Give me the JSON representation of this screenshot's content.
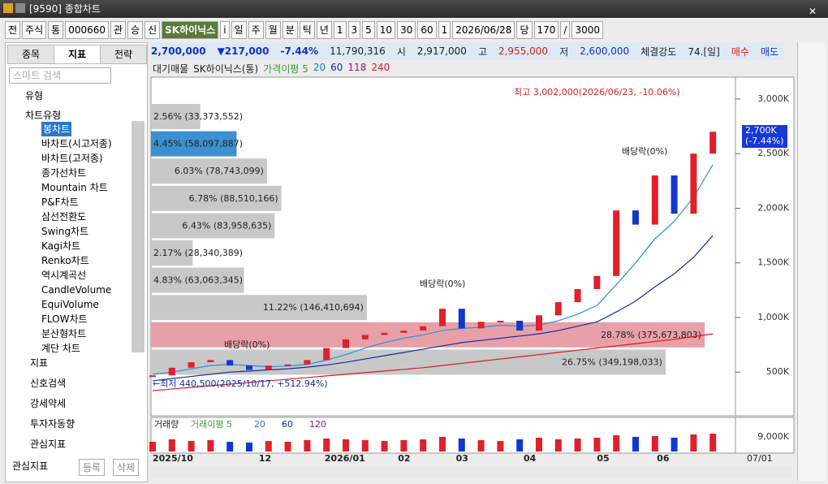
{
  "window": {
    "title": "[9590] 종합차트"
  },
  "toolbar": {
    "items": [
      "전",
      "주식",
      "통",
      "000660",
      "관",
      "승",
      "신",
      "SK하이닉스",
      "i",
      "일",
      "주",
      "월",
      "분",
      "틱",
      "년",
      "1",
      "3",
      "5",
      "10",
      "30",
      "60",
      "1",
      "2026/06/28",
      "당",
      "170",
      "/",
      "3000"
    ]
  },
  "left_panel": {
    "tabs": [
      "종목",
      "지표",
      "전략"
    ],
    "search": "스마트 검색",
    "group": "유형",
    "subgroup": "차트유형",
    "items": [
      "봉차트",
      "바차트(시고저종)",
      "바차트(고저종)",
      "종가선차트",
      "Mountain 차트",
      "P&F차트",
      "삼선전환도",
      "Swing차트",
      "Kagi차트",
      "Renko차트",
      "역시계곡선",
      "CandleVolume",
      "EquiVolume",
      "FLOW차트",
      "분산형차트",
      "계단 차트"
    ],
    "sections": [
      "지표",
      "신호검색",
      "강세약세",
      "투자자동향",
      "관심지표"
    ],
    "footer": [
      "관심지표",
      "등록",
      "삭제"
    ]
  },
  "info": {
    "price": "2,700,000",
    "change": "▼217,000",
    "rate": "-7.44%",
    "volume": "11,790,316",
    "open_label": "시",
    "open": "2,917,000",
    "high_label": "고",
    "high": "2,955,000",
    "low_label": "저",
    "low": "2,600,000",
    "strength_label": "체결강도",
    "strength": "74.[일]",
    "buy": "매수",
    "sell": "매도"
  },
  "legend": [
    "대기매물",
    "SK하이닉스(통)",
    "가격이평 5",
    "20",
    "60",
    "118",
    "240"
  ],
  "chart_data": {
    "type": "candlestick",
    "closes": [
      470,
      540,
      590,
      610,
      560,
      520,
      560,
      570,
      610,
      720,
      800,
      840,
      860,
      880,
      920,
      1080,
      900,
      960,
      970,
      880,
      1020,
      1140,
      1260,
      1380,
      1980,
      1850,
      2300,
      1950,
      2500,
      2700
    ],
    "ma20": [
      480,
      500,
      530,
      560,
      570,
      560,
      550,
      555,
      570,
      610,
      660,
      720,
      770,
      810,
      840,
      880,
      900,
      910,
      930,
      920,
      930,
      970,
      1030,
      1110,
      1300,
      1500,
      1720,
      1880,
      2100,
      2400
    ],
    "ma60": [
      420,
      440,
      460,
      480,
      500,
      510,
      520,
      530,
      545,
      565,
      590,
      620,
      650,
      680,
      710,
      740,
      770,
      790,
      810,
      830,
      850,
      880,
      920,
      960,
      1050,
      1150,
      1280,
      1400,
      1550,
      1750
    ],
    "ma240": [
      330,
      345,
      360,
      375,
      390,
      405,
      420,
      435,
      450,
      465,
      480,
      495,
      510,
      525,
      540,
      560,
      580,
      600,
      620,
      640,
      660,
      680,
      700,
      720,
      740,
      760,
      780,
      800,
      825,
      850
    ],
    "ylim": [
      100,
      3200
    ],
    "yticks": [
      {
        "value": 3000,
        "label": "3,000K"
      },
      {
        "value": 2500,
        "label": "2,500K"
      },
      {
        "value": 2000,
        "label": "2,000K"
      },
      {
        "value": 1500,
        "label": "1,500K"
      },
      {
        "value": 1000,
        "label": "1,000K"
      },
      {
        "value": 500,
        "label": "500K"
      }
    ],
    "xticks": [
      {
        "value": 0,
        "label": "2025/10"
      },
      {
        "value": 5.5,
        "label": "12"
      },
      {
        "value": 8.9,
        "label": "2026/01"
      },
      {
        "value": 12.7,
        "label": "02"
      },
      {
        "value": 15.7,
        "label": "03"
      },
      {
        "value": 19.2,
        "label": "04"
      },
      {
        "value": 23,
        "label": "05"
      },
      {
        "value": 26.1,
        "label": "06"
      }
    ],
    "x_end": "07/01",
    "up_color": "#e0202a",
    "down_color": "#1038d0",
    "profile": [
      {
        "percent": 2.56,
        "label": "2.56% (33,373,552)",
        "color": "#c8c8c8"
      },
      {
        "percent": 4.45,
        "label": "4.45% (58,097,887)",
        "color": "#3d8fd0"
      },
      {
        "percent": 6.03,
        "label": "6.03% (78,743,099)",
        "color": "#c8c8c8"
      },
      {
        "percent": 6.78,
        "label": "6.78% (88,510,166)",
        "color": "#c8c8c8"
      },
      {
        "percent": 6.43,
        "label": "6.43% (83,958,635)",
        "color": "#c8c8c8"
      },
      {
        "percent": 2.17,
        "label": "2.17% (28,340,389)",
        "color": "#c8c8c8"
      },
      {
        "percent": 4.83,
        "label": "4.83% (63,063,345)",
        "color": "#c8c8c8"
      },
      {
        "percent": 11.22,
        "label": "11.22% (146,410,694)",
        "color": "#c8c8c8"
      },
      {
        "percent": 28.78,
        "label": "28.78% (375,673,803)",
        "color": "#e8a0a8"
      },
      {
        "percent": 26.75,
        "label": "26.75% (349,198,033)",
        "color": "#c8c8c8"
      }
    ],
    "annotations": {
      "high": "최고 3,002,000(2026/06/23, -10.06%)",
      "low": "←최저 440,500(2025/10/17, +512.94%)",
      "dividend": "배당락(0%)"
    },
    "current_tag": [
      "2,700K",
      "(-7.44%)"
    ],
    "volume": {
      "legend": [
        "거래량",
        "거래이평 5",
        "20",
        "60",
        "120"
      ],
      "values": [
        6000,
        7500,
        6500,
        7000,
        6000,
        5500,
        6500,
        6000,
        7000,
        8000,
        7500,
        7000,
        6500,
        7000,
        7500,
        9000,
        8000,
        7000,
        6500,
        7500,
        8500,
        7500,
        8000,
        8500,
        10000,
        9000,
        9500,
        8500,
        10500,
        11000
      ],
      "ylim": [
        0,
        20000
      ],
      "yticks": [
        {
          "value": 9000,
          "label": "9,000K"
        }
      ]
    }
  }
}
